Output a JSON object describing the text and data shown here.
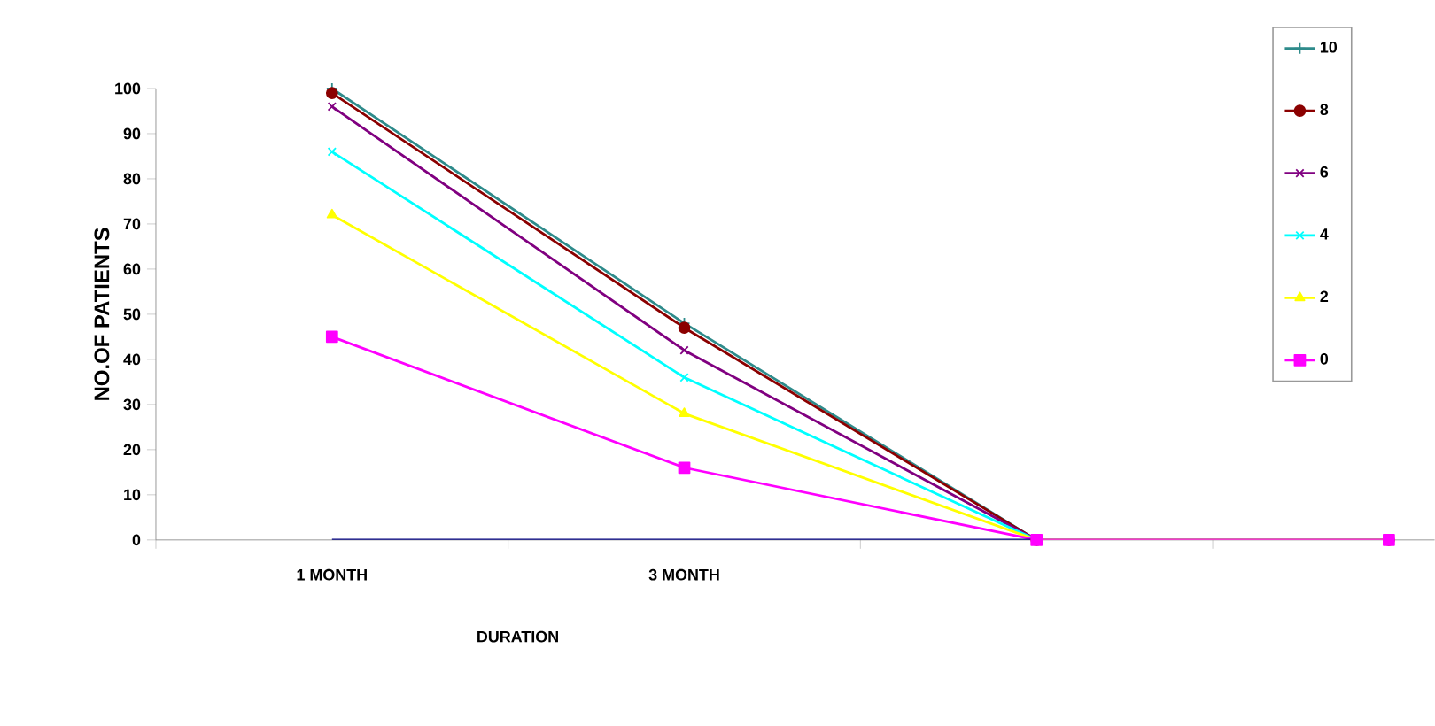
{
  "chart_data": {
    "type": "line",
    "xlabel": "DURATION",
    "ylabel": "NO.OF PATIENTS",
    "categories": [
      "1 MONTH",
      "3 MONTH",
      null,
      null
    ],
    "ylim": [
      0,
      100
    ],
    "yticks": [
      0,
      10,
      20,
      30,
      40,
      50,
      60,
      70,
      80,
      90,
      100
    ],
    "grid": false,
    "legend": "top right",
    "series": [
      {
        "name": "10",
        "color": "#2e8b8b",
        "marker": "plus",
        "values": [
          100,
          48,
          0,
          0
        ]
      },
      {
        "name": "8",
        "color": "#8b0000",
        "marker": "circle",
        "values": [
          99,
          47,
          0,
          0
        ]
      },
      {
        "name": "6",
        "color": "#800080",
        "marker": "cross",
        "values": [
          96,
          42,
          0,
          0
        ]
      },
      {
        "name": "4",
        "color": "#00ffff",
        "marker": "cross",
        "values": [
          86,
          36,
          0,
          0
        ]
      },
      {
        "name": "2",
        "color": "#ffff00",
        "marker": "triangle",
        "values": [
          72,
          28,
          0,
          0
        ]
      },
      {
        "name": "0",
        "color": "#ff00ff",
        "marker": "square",
        "values": [
          45,
          16,
          0,
          0
        ]
      },
      {
        "color": "#000080",
        "marker": "none",
        "values": [
          0,
          0,
          0,
          null
        ]
      }
    ]
  }
}
